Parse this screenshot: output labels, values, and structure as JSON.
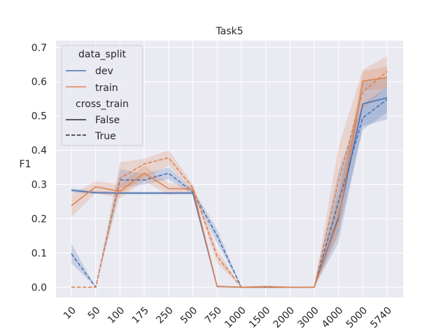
{
  "chart_data": {
    "type": "line",
    "title": "Task5",
    "xlabel": "",
    "ylabel": "F1",
    "x_tick_labels": [
      "10",
      "50",
      "100",
      "175",
      "250",
      "500",
      "750",
      "1000",
      "1500",
      "2000",
      "3000",
      "4000",
      "5000",
      "5740"
    ],
    "y_ticks": [
      0.0,
      0.1,
      0.2,
      0.3,
      0.4,
      0.5,
      0.6,
      0.7
    ],
    "y_tick_labels": [
      "0.0",
      "0.1",
      "0.2",
      "0.3",
      "0.4",
      "0.5",
      "0.6",
      "0.7"
    ],
    "ylim": [
      -0.03,
      0.72
    ],
    "grid": true,
    "legend": {
      "placement": "top-left",
      "hue_title": "data_split",
      "hue_entries": [
        "dev",
        "train"
      ],
      "style_title": "cross_train",
      "style_entries": [
        "False",
        "True"
      ]
    },
    "colors": {
      "dev": "#4c72b0",
      "train": "#dd8452",
      "background": "#eaeaf2",
      "grid": "#ffffff"
    },
    "series": [
      {
        "split": "dev",
        "cross_train": "False",
        "dash": "solid",
        "values": [
          0.283,
          0.276,
          0.275,
          0.275,
          0.275,
          0.275,
          0.002,
          0.0,
          0.0,
          0.0,
          0.0,
          0.205,
          0.535,
          0.553
        ],
        "lower": [
          0.277,
          0.272,
          0.271,
          0.271,
          0.271,
          0.271,
          0.0,
          0.0,
          0.0,
          0.0,
          0.0,
          0.13,
          0.47,
          0.49
        ],
        "upper": [
          0.289,
          0.281,
          0.279,
          0.279,
          0.279,
          0.279,
          0.004,
          0.0,
          0.0,
          0.0,
          0.0,
          0.28,
          0.6,
          0.615
        ]
      },
      {
        "split": "dev",
        "cross_train": "True",
        "dash": "dashed",
        "values": [
          0.098,
          0.0,
          0.313,
          0.313,
          0.333,
          0.278,
          0.15,
          0.0,
          0.0,
          0.0,
          0.0,
          0.25,
          0.495,
          0.548
        ],
        "lower": [
          0.07,
          0.0,
          0.29,
          0.3,
          0.315,
          0.27,
          0.13,
          0.0,
          0.0,
          0.0,
          0.0,
          0.16,
          0.46,
          0.51
        ],
        "upper": [
          0.128,
          0.0,
          0.345,
          0.33,
          0.35,
          0.286,
          0.17,
          0.0,
          0.0,
          0.0,
          0.0,
          0.34,
          0.535,
          0.585
        ]
      },
      {
        "split": "train",
        "cross_train": "False",
        "dash": "solid",
        "values": [
          0.238,
          0.293,
          0.28,
          0.333,
          0.288,
          0.287,
          0.003,
          0.0,
          0.002,
          0.0,
          0.0,
          0.196,
          0.602,
          0.612
        ],
        "lower": [
          0.205,
          0.275,
          0.26,
          0.31,
          0.27,
          0.28,
          0.0,
          0.0,
          0.0,
          0.0,
          0.0,
          0.15,
          0.575,
          0.58
        ],
        "upper": [
          0.27,
          0.31,
          0.3,
          0.355,
          0.305,
          0.295,
          0.006,
          0.0,
          0.004,
          0.0,
          0.0,
          0.25,
          0.63,
          0.645
        ]
      },
      {
        "split": "train",
        "cross_train": "True",
        "dash": "dashed",
        "values": [
          0.0,
          0.0,
          0.318,
          0.36,
          0.378,
          0.29,
          0.09,
          0.0,
          0.0,
          0.0,
          0.0,
          0.31,
          0.57,
          0.63
        ],
        "lower": [
          0.0,
          0.0,
          0.27,
          0.32,
          0.355,
          0.28,
          0.07,
          0.0,
          0.0,
          0.0,
          0.0,
          0.22,
          0.52,
          0.585
        ],
        "upper": [
          0.0,
          0.0,
          0.365,
          0.375,
          0.4,
          0.3,
          0.11,
          0.0,
          0.0,
          0.0,
          0.0,
          0.41,
          0.635,
          0.675
        ]
      }
    ]
  }
}
